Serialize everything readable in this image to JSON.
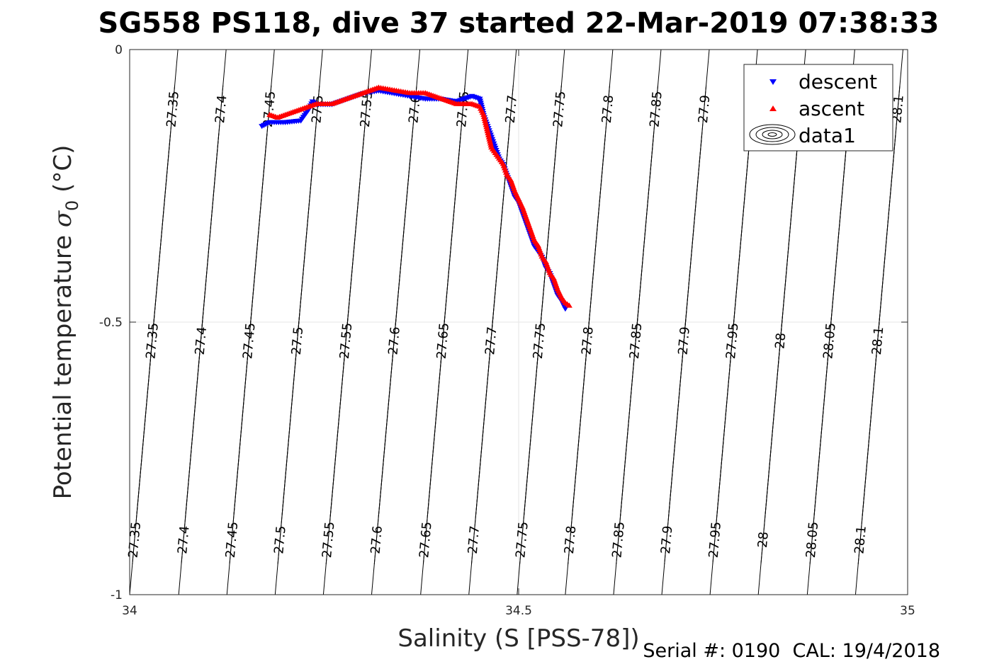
{
  "title": "SG558 PS118, dive 37 started 22-Mar-2019 07:38:33",
  "footer": "Serial #: 0190  CAL: 19/4/2018",
  "colors": {
    "descent": "#0000ff",
    "ascent": "#ff0000",
    "contour": "#000000",
    "grid": "#e6e6e6"
  },
  "chart_data": {
    "type": "scatter",
    "title": "SG558 PS118, dive 37 started 22-Mar-2019 07:38:33",
    "xlabel": "Salinity (S [PSS-78])",
    "ylabel": "Potential temperature σ₀ (°C)",
    "ylabel_main": "Potential temperature ",
    "ylabel_sym": "σ",
    "ylabel_sub": "0",
    "ylabel_unit": " (°C)",
    "xlim": [
      34,
      35
    ],
    "ylim": [
      -1,
      0
    ],
    "xticks": [
      34,
      34.5,
      35
    ],
    "xtick_labels": [
      "34",
      "34.5",
      "35"
    ],
    "yticks": [
      0,
      -0.5,
      -1
    ],
    "ytick_labels": [
      "0",
      "-0.5",
      "-1"
    ],
    "grid": true,
    "legend": {
      "placement": "top-right",
      "entries": [
        "descent",
        "ascent",
        "data1"
      ]
    },
    "contours": {
      "levels": [
        27.35,
        27.4,
        27.45,
        27.5,
        27.55,
        27.6,
        27.65,
        27.7,
        27.75,
        27.8,
        27.85,
        27.9,
        27.95,
        28,
        28.05,
        28.1
      ],
      "label_texts": [
        "27.35",
        "27.4",
        "27.45",
        "27.5",
        "27.55",
        "27.6",
        "27.65",
        "27.7",
        "27.75",
        "27.8",
        "27.85",
        "27.9",
        "27.95",
        "28",
        "28.05",
        "28.1"
      ],
      "x_at_top": [
        34.062,
        34.124,
        34.186,
        34.248,
        34.311,
        34.373,
        34.435,
        34.497,
        34.559,
        34.621,
        34.683,
        34.745,
        34.807,
        34.869,
        34.932,
        34.994
      ],
      "x_at_bottom": [
        34.0,
        34.063,
        34.125,
        34.187,
        34.249,
        34.311,
        34.374,
        34.436,
        34.498,
        34.56,
        34.622,
        34.684,
        34.746,
        34.808,
        34.871,
        34.933
      ],
      "label_rows_y": [
        -0.11,
        -0.535,
        -0.9
      ]
    },
    "series": [
      {
        "name": "descent",
        "marker": "triangle-down",
        "x": [
          34.17,
          34.18,
          34.2,
          34.22,
          34.23,
          34.235,
          34.24,
          34.26,
          34.28,
          34.3,
          34.32,
          34.34,
          34.36,
          34.38,
          34.4,
          34.42,
          34.43,
          34.44,
          34.45,
          34.455,
          34.46,
          34.465,
          34.47,
          34.475,
          34.48,
          34.485,
          34.49,
          34.495,
          34.5,
          34.505,
          34.51,
          34.515,
          34.52,
          34.525,
          34.53,
          34.535,
          34.54,
          34.545,
          34.55,
          34.555,
          34.56
        ],
        "y": [
          -0.14,
          -0.133,
          -0.133,
          -0.13,
          -0.11,
          -0.095,
          -0.1,
          -0.1,
          -0.09,
          -0.08,
          -0.075,
          -0.08,
          -0.085,
          -0.09,
          -0.09,
          -0.095,
          -0.09,
          -0.085,
          -0.09,
          -0.12,
          -0.14,
          -0.16,
          -0.18,
          -0.2,
          -0.21,
          -0.23,
          -0.25,
          -0.27,
          -0.28,
          -0.3,
          -0.32,
          -0.34,
          -0.36,
          -0.37,
          -0.38,
          -0.4,
          -0.41,
          -0.43,
          -0.45,
          -0.46,
          -0.475
        ]
      },
      {
        "name": "ascent",
        "marker": "triangle-up",
        "x": [
          34.18,
          34.19,
          34.2,
          34.21,
          34.22,
          34.23,
          34.24,
          34.26,
          34.28,
          34.3,
          34.32,
          34.34,
          34.36,
          34.38,
          34.4,
          34.41,
          34.42,
          34.43,
          34.44,
          34.45,
          34.455,
          34.46,
          34.465,
          34.47,
          34.475,
          34.48,
          34.485,
          34.49,
          34.495,
          34.5,
          34.505,
          34.51,
          34.515,
          34.52,
          34.525,
          34.53,
          34.535,
          34.54,
          34.545,
          34.55,
          34.555,
          34.56,
          34.565
        ],
        "y": [
          -0.12,
          -0.125,
          -0.12,
          -0.115,
          -0.11,
          -0.105,
          -0.1,
          -0.1,
          -0.09,
          -0.08,
          -0.07,
          -0.075,
          -0.08,
          -0.08,
          -0.09,
          -0.095,
          -0.1,
          -0.1,
          -0.1,
          -0.105,
          -0.12,
          -0.15,
          -0.18,
          -0.19,
          -0.2,
          -0.21,
          -0.23,
          -0.24,
          -0.26,
          -0.275,
          -0.29,
          -0.31,
          -0.33,
          -0.35,
          -0.36,
          -0.38,
          -0.39,
          -0.41,
          -0.42,
          -0.44,
          -0.455,
          -0.465,
          -0.47
        ]
      }
    ]
  }
}
